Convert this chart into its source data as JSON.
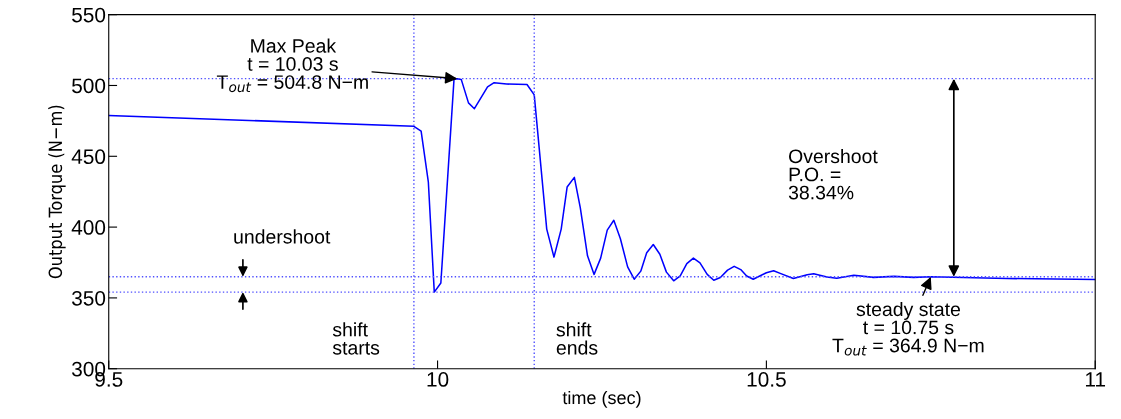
{
  "chart_data": {
    "type": "line",
    "xlabel": "time (sec)",
    "ylabel": "Output Torque (N−m)",
    "xlim": [
      9.5,
      11
    ],
    "xticks": [
      9.5,
      10,
      10.5,
      11
    ],
    "ylim": [
      300,
      550
    ],
    "yticks": [
      300,
      350,
      400,
      450,
      500,
      550
    ],
    "grid": false,
    "legend": false,
    "marker": "none",
    "line_style": "solid",
    "series": [
      {
        "color": "#0000ff",
        "x": [
          9.5,
          9.964,
          9.975,
          9.986,
          9.995,
          10.005,
          10.025,
          10.03,
          10.036,
          10.047,
          10.056,
          10.076,
          10.086,
          10.105,
          10.136,
          10.147,
          10.166,
          10.177,
          10.188,
          10.197,
          10.208,
          10.217,
          10.228,
          10.238,
          10.248,
          10.258,
          10.268,
          10.278,
          10.289,
          10.299,
          10.309,
          10.318,
          10.328,
          10.338,
          10.348,
          10.359,
          10.369,
          10.379,
          10.389,
          10.399,
          10.41,
          10.42,
          10.43,
          10.441,
          10.451,
          10.461,
          10.47,
          10.48,
          10.5,
          10.511,
          10.521,
          10.541,
          10.562,
          10.572,
          10.592,
          10.607,
          10.633,
          10.663,
          10.694,
          10.724,
          10.75,
          10.866,
          11.0
        ],
        "values": [
          478.8,
          471.2,
          467.8,
          431.7,
          354.1,
          360.5,
          504.3,
          504.8,
          504.3,
          487.7,
          483.6,
          499,
          502,
          501,
          500.7,
          493.4,
          398.6,
          378.8,
          398.6,
          428.3,
          435.1,
          413.7,
          379.7,
          366.6,
          378.1,
          397.9,
          404.8,
          391.8,
          371.9,
          363.2,
          368.9,
          381.9,
          387.7,
          380.8,
          368.2,
          362.1,
          365.5,
          374.2,
          378.1,
          374.7,
          366.6,
          362.5,
          364.4,
          369.6,
          372.3,
          370,
          365.5,
          363.2,
          367.8,
          369.2,
          367.3,
          363.7,
          366.4,
          367.1,
          364.8,
          363.9,
          366,
          364.5,
          365.2,
          364.5,
          364.9,
          363.7,
          363
        ]
      }
    ],
    "ref_lines": [
      {
        "axis": "y",
        "value": 504.8,
        "color": "#5050ff",
        "line_style": "dotted"
      },
      {
        "axis": "y",
        "value": 364.9,
        "color": "#5050ff",
        "line_style": "dotted"
      },
      {
        "axis": "y",
        "value": 354.1,
        "color": "#5050ff",
        "line_style": "dotted"
      },
      {
        "axis": "x",
        "value": 9.964,
        "color": "#5050ff",
        "line_style": "dotted"
      },
      {
        "axis": "x",
        "value": 10.147,
        "color": "#5050ff",
        "line_style": "dotted"
      }
    ],
    "annotations": [
      {
        "text": "Max Peak\nt = 10.03 s\nT$_{out}$ = 504.8 N−m",
        "x": 10.03,
        "y": 504.8
      },
      "undershoot",
      "Overshoot\nP.O. =\n38.34%",
      "shift\nstarts",
      "shift\nends",
      {
        "text": "steady state\nt = 10.75 s\nT$_{out}$ = 364.9 N−m",
        "x": 10.75,
        "y": 364.9
      }
    ]
  }
}
